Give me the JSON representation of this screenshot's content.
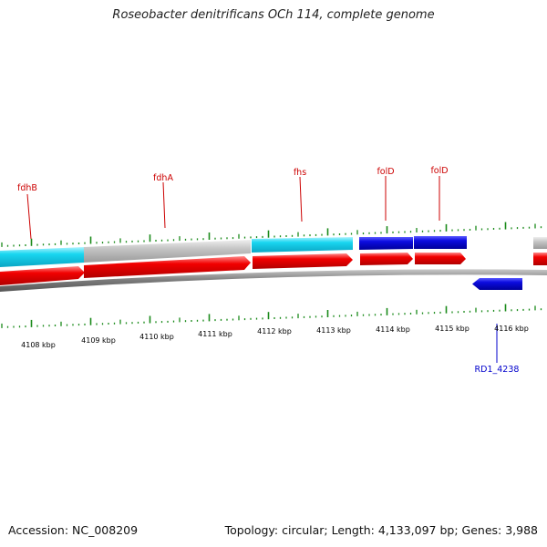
{
  "title": "Roseobacter denitrificans OCh 114, complete genome",
  "footer": {
    "accession": "Accession: NC_008209",
    "summary": "Topology: circular; Length: 4,133,097 bp; Genes: 3,988"
  },
  "colors": {
    "gene_label": "#cc0000",
    "rd_label": "#0000cc",
    "tick": "#1a8a1a",
    "cyan": "#17d3ee",
    "gray": "#bdbdbd",
    "blue": "#0a0ad8",
    "red": "#ee0000"
  },
  "gene_labels": [
    "fdhB",
    "fdhA",
    "fhs",
    "folD",
    "folD"
  ],
  "rd_label": "RD1_4238",
  "kbp_labels": [
    "4108 kbp",
    "4109 kbp",
    "4110 kbp",
    "4111 kbp",
    "4112 kbp",
    "4113 kbp",
    "4114 kbp",
    "4115 kbp",
    "4116 kbp"
  ]
}
